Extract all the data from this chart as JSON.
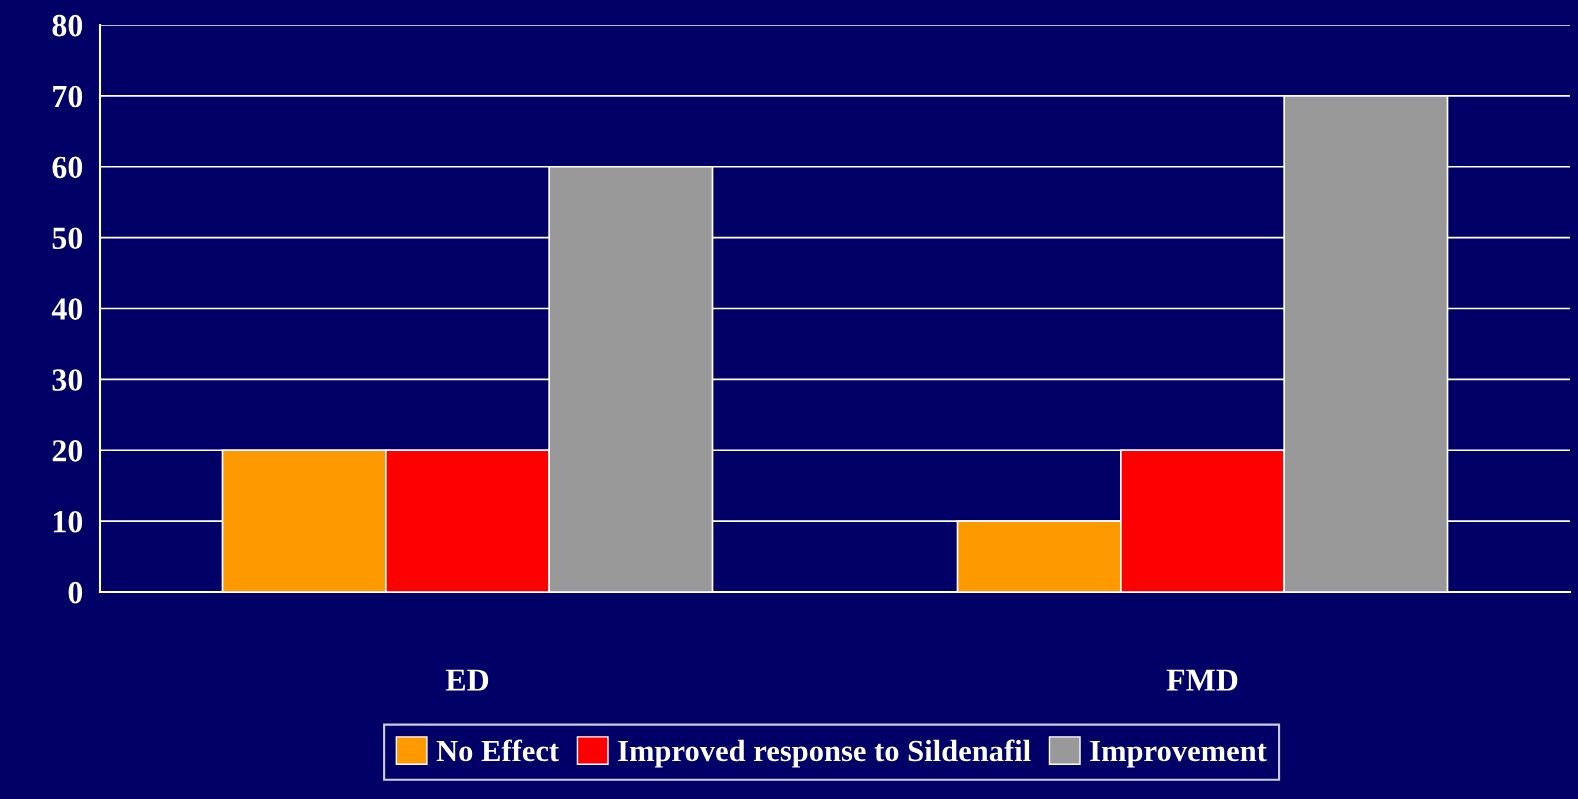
{
  "chart_data": {
    "type": "bar",
    "categories": [
      "ED",
      "FMD"
    ],
    "series": [
      {
        "name": "No Effect",
        "color": "#ff9900",
        "values": [
          20,
          10
        ]
      },
      {
        "name": "Improved response to Sildenafil",
        "color": "#ff0000",
        "values": [
          20,
          20
        ]
      },
      {
        "name": "Improvement",
        "color": "#999999",
        "values": [
          60,
          70
        ]
      }
    ],
    "ylim": [
      0,
      80
    ],
    "yticks": [
      0,
      10,
      20,
      30,
      40,
      50,
      60,
      70,
      80
    ],
    "grid": "y",
    "legend": "bottom"
  }
}
